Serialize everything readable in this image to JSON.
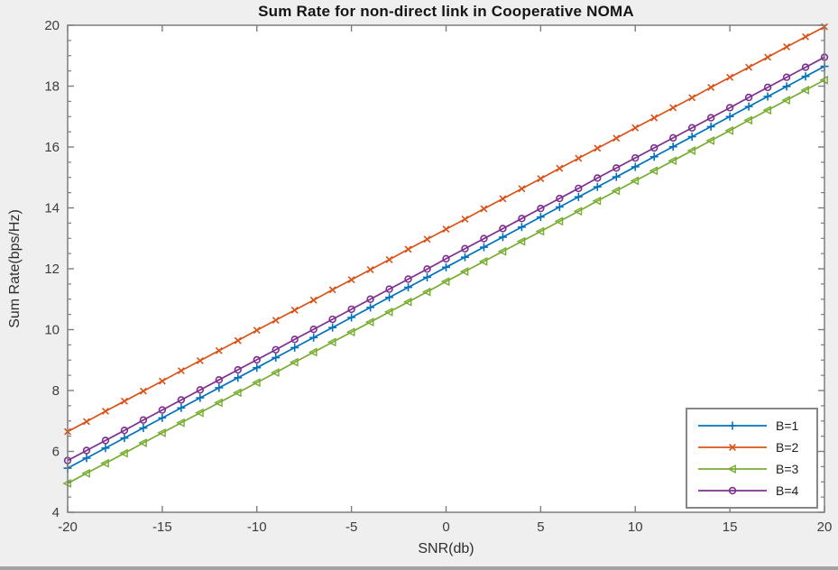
{
  "figure": {
    "background": "#efefef",
    "plot_background": "#ffffff",
    "axis_color": "#7d7d7d",
    "tick_label_color": "#3d3d3d"
  },
  "chart_data": {
    "type": "line",
    "title": "Sum Rate for non-direct link in Cooperative NOMA",
    "xlabel": "SNR(db)",
    "ylabel": "Sum Rate(bps/Hz)",
    "xlim": [
      -20,
      20
    ],
    "ylim": [
      4,
      20
    ],
    "xticks": [
      -20,
      -15,
      -10,
      -5,
      0,
      5,
      10,
      15,
      20
    ],
    "yticks": [
      4,
      6,
      8,
      10,
      12,
      14,
      16,
      18,
      20
    ],
    "y_minor_step": 0.5,
    "grid": false,
    "legend_position": "bottom-right",
    "x": [
      -20,
      -19,
      -18,
      -17,
      -16,
      -15,
      -14,
      -13,
      -12,
      -11,
      -10,
      -9,
      -8,
      -7,
      -6,
      -5,
      -4,
      -3,
      -2,
      -1,
      0,
      1,
      2,
      3,
      4,
      5,
      6,
      7,
      8,
      9,
      10,
      11,
      12,
      13,
      14,
      15,
      16,
      17,
      18,
      19,
      20
    ],
    "series": [
      {
        "name": "B=1",
        "color": "#0072BD",
        "marker": "plus",
        "values": [
          5.45,
          5.78,
          6.11,
          6.44,
          6.77,
          7.1,
          7.43,
          7.76,
          8.09,
          8.42,
          8.75,
          9.08,
          9.41,
          9.74,
          10.07,
          10.4,
          10.73,
          11.06,
          11.39,
          11.72,
          12.05,
          12.38,
          12.71,
          13.04,
          13.37,
          13.7,
          14.03,
          14.36,
          14.69,
          15.02,
          15.35,
          15.68,
          16.01,
          16.34,
          16.67,
          17.0,
          17.33,
          17.66,
          17.99,
          18.32,
          18.65
        ]
      },
      {
        "name": "B=2",
        "color": "#D95319",
        "marker": "x",
        "values": [
          6.65,
          6.98,
          7.32,
          7.65,
          7.98,
          8.31,
          8.65,
          8.98,
          9.31,
          9.64,
          9.98,
          10.31,
          10.64,
          10.97,
          11.31,
          11.64,
          11.97,
          12.3,
          12.64,
          12.97,
          13.3,
          13.63,
          13.97,
          14.3,
          14.63,
          14.96,
          15.3,
          15.63,
          15.96,
          16.29,
          16.63,
          16.96,
          17.29,
          17.62,
          17.96,
          18.29,
          18.62,
          18.95,
          19.29,
          19.62,
          19.95
        ]
      },
      {
        "name": "B=3",
        "color": "#77AC30",
        "marker": "triangle-left",
        "values": [
          4.95,
          5.28,
          5.61,
          5.94,
          6.28,
          6.61,
          6.94,
          7.27,
          7.6,
          7.93,
          8.26,
          8.59,
          8.93,
          9.26,
          9.59,
          9.92,
          10.25,
          10.58,
          10.91,
          11.24,
          11.58,
          11.91,
          12.24,
          12.57,
          12.9,
          13.23,
          13.56,
          13.89,
          14.23,
          14.56,
          14.89,
          15.22,
          15.55,
          15.88,
          16.21,
          16.54,
          16.88,
          17.21,
          17.54,
          17.87,
          18.2
        ]
      },
      {
        "name": "B=4",
        "color": "#7E2F8E",
        "marker": "circle",
        "values": [
          5.7,
          6.03,
          6.36,
          6.69,
          7.03,
          7.36,
          7.69,
          8.02,
          8.35,
          8.68,
          9.01,
          9.34,
          9.68,
          10.01,
          10.34,
          10.67,
          11.0,
          11.33,
          11.66,
          11.99,
          12.33,
          12.66,
          12.99,
          13.32,
          13.65,
          13.98,
          14.31,
          14.64,
          14.98,
          15.31,
          15.64,
          15.97,
          16.3,
          16.63,
          16.96,
          17.29,
          17.63,
          17.96,
          18.29,
          18.62,
          18.95
        ]
      }
    ]
  }
}
